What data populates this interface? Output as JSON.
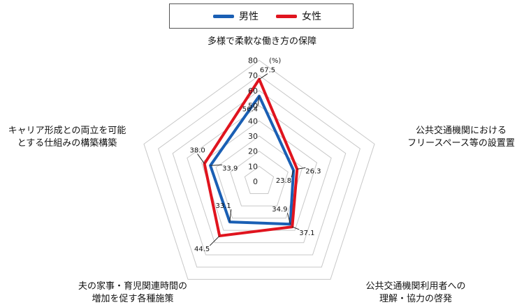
{
  "chart_data": {
    "type": "radar",
    "unit": "(%)",
    "rmin": 0,
    "rmax": 80,
    "ticks": [
      0,
      10,
      20,
      30,
      40,
      50,
      60,
      70,
      80
    ],
    "tick_labels": [
      "0",
      "10",
      "20",
      "30",
      "40",
      "50",
      "60",
      "70",
      "80"
    ],
    "grid": true,
    "legend_position": "top-center",
    "axes": [
      {
        "lines": [
          "多様で柔軟な働き方の保障"
        ]
      },
      {
        "lines": [
          "公共交通機関における",
          "フリースペース等の設置置"
        ]
      },
      {
        "lines": [
          "公共交通機関利用者への",
          "理解・協力の啓発"
        ]
      },
      {
        "lines": [
          "夫の家事・育児関連時間の",
          "増加を促す各種施策"
        ]
      },
      {
        "lines": [
          "キャリア形成との両立を可能",
          "とする仕組みの構築構築"
        ]
      }
    ],
    "series": [
      {
        "name": "男性",
        "color": "#1a5fb4",
        "values": [
          56.4,
          23.8,
          34.9,
          33.1,
          33.9
        ]
      },
      {
        "name": "女性",
        "color": "#e0141e",
        "values": [
          67.5,
          26.3,
          37.1,
          44.5,
          38.0
        ]
      }
    ]
  }
}
